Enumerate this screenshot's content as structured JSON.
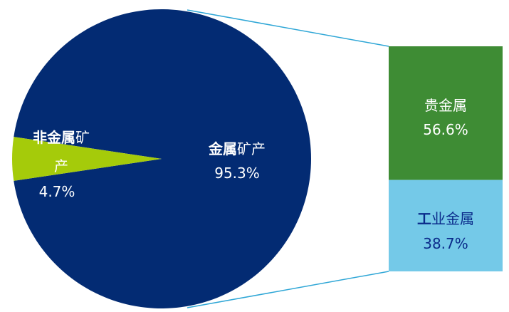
{
  "chart_data": {
    "type": "bar-of-pie",
    "pie": {
      "slices": [
        {
          "key": "metal",
          "label_part1": "金属",
          "label_part2": "矿产",
          "value": 95.3,
          "value_label": "95.3%",
          "color": "#032B73"
        },
        {
          "key": "nonmetal",
          "label_part1": "非金属",
          "label_part2": "矿",
          "label_part3": "产",
          "value": 4.7,
          "value_label": "4.7%",
          "color": "#A5CB0A"
        }
      ]
    },
    "bar": {
      "segments": [
        {
          "key": "precious",
          "label": "贵金属",
          "value": 56.6,
          "value_label": "56.6%",
          "color": "#3E8C34",
          "text_color": "#FFFFFF"
        },
        {
          "key": "industrial",
          "label_part1": "工",
          "label_part2": "业金属",
          "value": 38.7,
          "value_label": "38.7%",
          "color": "#74C9E8",
          "text_color": "#0A2A8A"
        }
      ]
    },
    "connector_color": "#2EA6D6"
  }
}
